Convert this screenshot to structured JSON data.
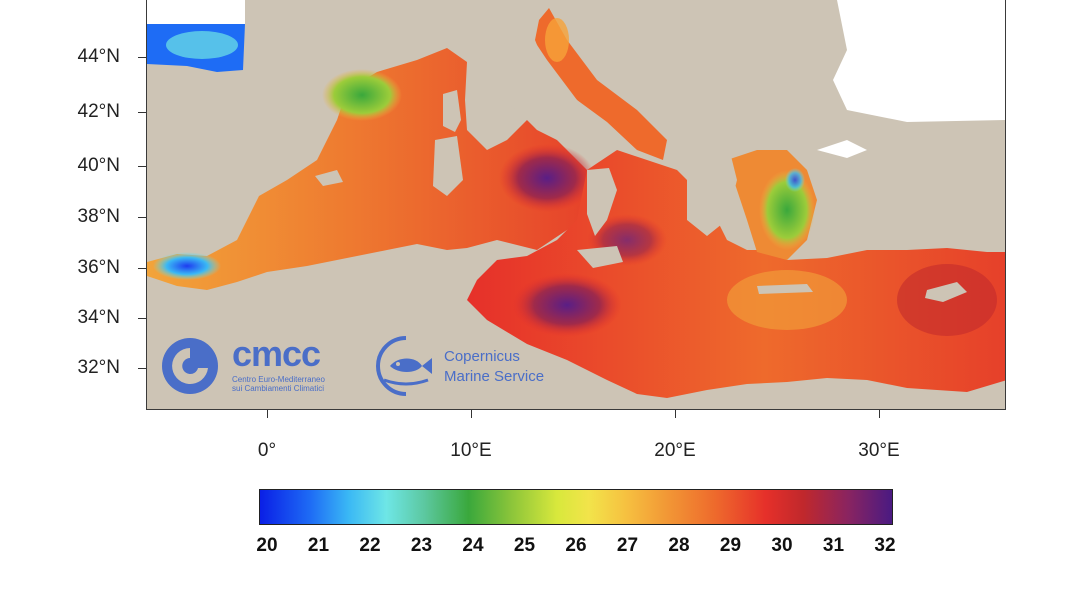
{
  "map": {
    "latitude_labels": [
      "44°N",
      "42°N",
      "40°N",
      "38°N",
      "36°N",
      "34°N",
      "32°N"
    ],
    "longitude_labels": [
      "0°",
      "10°E",
      "20°E",
      "30°E"
    ],
    "colorbar": {
      "min": 20,
      "max": 32,
      "labels": [
        "20",
        "21",
        "22",
        "23",
        "24",
        "25",
        "26",
        "27",
        "28",
        "29",
        "30",
        "31",
        "32"
      ]
    },
    "colors": {
      "land": "#cdc4b5",
      "no_data": "#ffffff",
      "sea_warm": "#e6302a",
      "sea_hot": "#5a1e86",
      "sea_cool": "#3aa83c",
      "sea_cold": "#1e6cf5"
    }
  },
  "logos": {
    "cmcc": {
      "name": "cmcc",
      "subtitle_line1": "Centro Euro-Mediterraneo",
      "subtitle_line2": "sui Cambiamenti Climatici"
    },
    "copernicus": {
      "line1": "Copernicus",
      "line2": "Marine Service"
    }
  }
}
